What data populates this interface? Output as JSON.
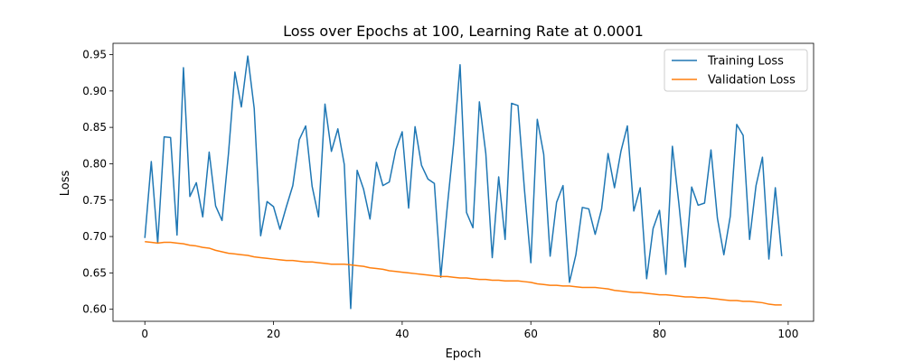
{
  "chart_data": {
    "type": "line",
    "title": "Loss over Epochs at 100, Learning Rate at 0.0001",
    "xlabel": "Epoch",
    "ylabel": "Loss",
    "xlim": [
      -4.95,
      103.95
    ],
    "ylim": [
      0.5835,
      0.9655
    ],
    "xticks": [
      0,
      20,
      40,
      60,
      80,
      100
    ],
    "yticks": [
      0.6,
      0.65,
      0.7,
      0.75,
      0.8,
      0.85,
      0.9,
      0.95
    ],
    "xtick_labels": [
      "0",
      "20",
      "40",
      "60",
      "80",
      "100"
    ],
    "ytick_labels": [
      "0.60",
      "0.65",
      "0.70",
      "0.75",
      "0.80",
      "0.85",
      "0.90",
      "0.95"
    ],
    "grid": false,
    "legend_position": "top-right",
    "series": [
      {
        "name": "Training Loss",
        "color": "#1f77b4",
        "values": [
          0.698,
          0.803,
          0.691,
          0.837,
          0.836,
          0.702,
          0.932,
          0.755,
          0.774,
          0.727,
          0.816,
          0.742,
          0.722,
          0.814,
          0.926,
          0.878,
          0.948,
          0.876,
          0.701,
          0.748,
          0.741,
          0.71,
          0.741,
          0.77,
          0.833,
          0.852,
          0.769,
          0.727,
          0.882,
          0.817,
          0.848,
          0.799,
          0.601,
          0.791,
          0.765,
          0.724,
          0.802,
          0.77,
          0.775,
          0.819,
          0.844,
          0.739,
          0.851,
          0.798,
          0.779,
          0.773,
          0.644,
          0.74,
          0.828,
          0.936,
          0.733,
          0.712,
          0.885,
          0.814,
          0.671,
          0.782,
          0.696,
          0.883,
          0.88,
          0.765,
          0.664,
          0.861,
          0.813,
          0.673,
          0.747,
          0.77,
          0.637,
          0.675,
          0.74,
          0.738,
          0.703,
          0.738,
          0.814,
          0.767,
          0.817,
          0.852,
          0.735,
          0.767,
          0.642,
          0.711,
          0.736,
          0.648,
          0.824,
          0.746,
          0.658,
          0.768,
          0.743,
          0.746,
          0.819,
          0.725,
          0.675,
          0.728,
          0.854,
          0.839,
          0.696,
          0.77,
          0.809,
          0.669,
          0.767,
          0.673
        ]
      },
      {
        "name": "Validation Loss",
        "color": "#ff7f0e",
        "values": [
          0.693,
          0.692,
          0.691,
          0.692,
          0.692,
          0.691,
          0.69,
          0.688,
          0.687,
          0.685,
          0.684,
          0.681,
          0.679,
          0.677,
          0.676,
          0.675,
          0.674,
          0.672,
          0.671,
          0.67,
          0.669,
          0.668,
          0.667,
          0.667,
          0.666,
          0.665,
          0.665,
          0.664,
          0.663,
          0.662,
          0.662,
          0.662,
          0.661,
          0.66,
          0.659,
          0.657,
          0.656,
          0.655,
          0.653,
          0.652,
          0.651,
          0.65,
          0.649,
          0.648,
          0.647,
          0.646,
          0.645,
          0.645,
          0.644,
          0.643,
          0.643,
          0.642,
          0.641,
          0.641,
          0.64,
          0.64,
          0.639,
          0.639,
          0.639,
          0.638,
          0.637,
          0.635,
          0.634,
          0.633,
          0.633,
          0.632,
          0.632,
          0.631,
          0.63,
          0.63,
          0.63,
          0.629,
          0.628,
          0.626,
          0.625,
          0.624,
          0.623,
          0.623,
          0.622,
          0.621,
          0.62,
          0.62,
          0.619,
          0.618,
          0.617,
          0.617,
          0.616,
          0.616,
          0.615,
          0.614,
          0.613,
          0.612,
          0.612,
          0.611,
          0.611,
          0.61,
          0.609,
          0.607,
          0.606,
          0.606
        ]
      }
    ]
  }
}
